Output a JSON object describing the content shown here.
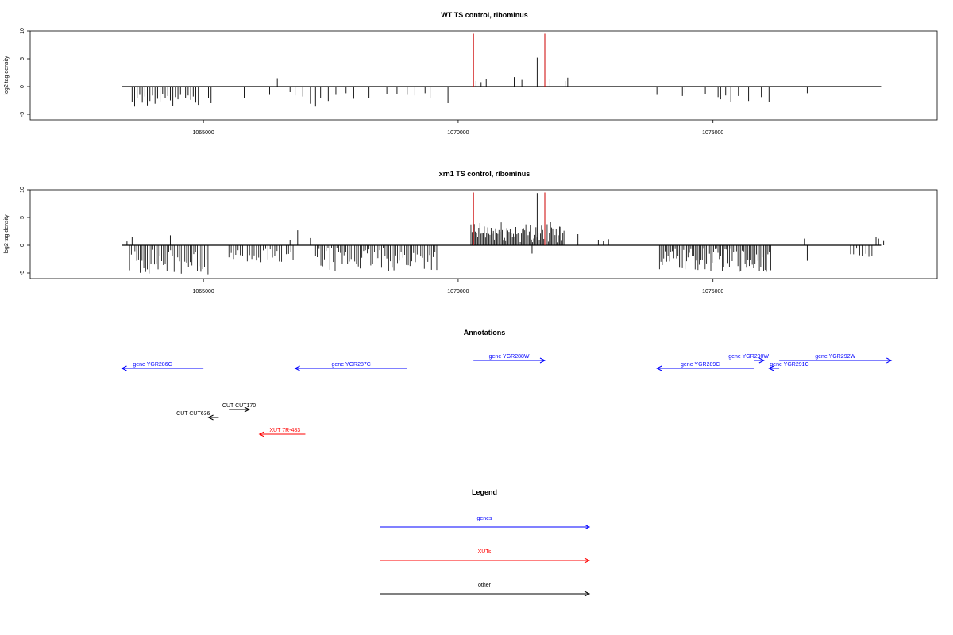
{
  "colors": {
    "gene": "#0000ff",
    "xut": "#ff0000",
    "other": "#000000",
    "marker": "#cc0000",
    "bar": "#000000"
  },
  "chart_data": [
    {
      "type": "bar",
      "title": "WT TS control, ribominus",
      "xlabel": "",
      "ylabel": "log2 tag density",
      "xlim": [
        1061600,
        1079400
      ],
      "ylim": [
        -6,
        10
      ],
      "x_ticks": [
        1065000,
        1070000,
        1075000
      ],
      "x_tick_labels": [
        "1065000",
        "1070000",
        "1075000"
      ],
      "y_ticks": [
        -5,
        0,
        5,
        10
      ],
      "y_tick_labels": [
        "-5",
        "0",
        "5",
        "10"
      ],
      "baseline_range": [
        1063400,
        1078300
      ],
      "markers": [
        1070300,
        1071700
      ],
      "dense_clusters": [],
      "sparse_bars": [
        [
          1063600,
          -2.8
        ],
        [
          1063650,
          -3.6
        ],
        [
          1063700,
          -2.1
        ],
        [
          1063750,
          -1.5
        ],
        [
          1063800,
          -2.9
        ],
        [
          1063850,
          -1.8
        ],
        [
          1063900,
          -3.4
        ],
        [
          1063950,
          -2.6
        ],
        [
          1064000,
          -1.6
        ],
        [
          1064050,
          -3.1
        ],
        [
          1064100,
          -2.2
        ],
        [
          1064150,
          -2.7
        ],
        [
          1064200,
          -1.4
        ],
        [
          1064250,
          -2.0
        ],
        [
          1064300,
          -1.7
        ],
        [
          1064350,
          -2.5
        ],
        [
          1064400,
          -3.5
        ],
        [
          1064450,
          -1.9
        ],
        [
          1064500,
          -2.3
        ],
        [
          1064550,
          -1.5
        ],
        [
          1064600,
          -2.8
        ],
        [
          1064650,
          -2.1
        ],
        [
          1064700,
          -1.6
        ],
        [
          1064750,
          -2.4
        ],
        [
          1064800,
          -1.8
        ],
        [
          1064850,
          -2.9
        ],
        [
          1064900,
          -3.3
        ],
        [
          1065100,
          -2.1
        ],
        [
          1065150,
          -3.0
        ],
        [
          1065800,
          -2.0
        ],
        [
          1066300,
          -1.5
        ],
        [
          1066450,
          1.5
        ],
        [
          1066700,
          -1.0
        ],
        [
          1066800,
          -1.6
        ],
        [
          1066950,
          -1.8
        ],
        [
          1067100,
          -3.1
        ],
        [
          1067200,
          -3.6
        ],
        [
          1067300,
          -2.1
        ],
        [
          1067450,
          -2.6
        ],
        [
          1067600,
          -1.5
        ],
        [
          1067800,
          -1.2
        ],
        [
          1067950,
          -2.2
        ],
        [
          1068250,
          -2.0
        ],
        [
          1068600,
          -1.4
        ],
        [
          1068700,
          -1.6
        ],
        [
          1068800,
          -1.3
        ],
        [
          1069000,
          -1.5
        ],
        [
          1069150,
          -1.6
        ],
        [
          1069350,
          -1.2
        ],
        [
          1069450,
          -2.1
        ],
        [
          1069800,
          -3.0
        ],
        [
          1070350,
          1.0
        ],
        [
          1070450,
          0.8
        ],
        [
          1070550,
          1.4
        ],
        [
          1071100,
          1.7
        ],
        [
          1071250,
          1.2
        ],
        [
          1071350,
          2.3
        ],
        [
          1071550,
          5.2
        ],
        [
          1071800,
          1.3
        ],
        [
          1072100,
          1.0
        ],
        [
          1072150,
          1.6
        ],
        [
          1073900,
          -1.5
        ],
        [
          1074400,
          -1.7
        ],
        [
          1074450,
          -1.2
        ],
        [
          1074850,
          -1.3
        ],
        [
          1075100,
          -1.9
        ],
        [
          1075150,
          -2.3
        ],
        [
          1075250,
          -1.6
        ],
        [
          1075350,
          -2.8
        ],
        [
          1075500,
          -1.7
        ],
        [
          1075700,
          -2.6
        ],
        [
          1075950,
          -1.9
        ],
        [
          1076100,
          -2.8
        ],
        [
          1076850,
          -1.2
        ]
      ]
    },
    {
      "type": "bar",
      "title": "xrn1 TS control, ribominus",
      "xlabel": "",
      "ylabel": "log2 tag density",
      "xlim": [
        1061600,
        1079400
      ],
      "ylim": [
        -6,
        10
      ],
      "x_ticks": [
        1065000,
        1070000,
        1075000
      ],
      "x_tick_labels": [
        "1065000",
        "1070000",
        "1075000"
      ],
      "y_ticks": [
        -5,
        0,
        5,
        10
      ],
      "y_tick_labels": [
        "-5",
        "0",
        "5",
        "10"
      ],
      "baseline_range": [
        1063400,
        1078300
      ],
      "markers": [
        1070300,
        1071700
      ],
      "dense_clusters": [
        {
          "start": 1063550,
          "end": 1065100,
          "step": 35,
          "min": -5.3,
          "max": -0.6
        },
        {
          "start": 1065500,
          "end": 1066800,
          "step": 45,
          "min": -3.3,
          "max": -0.5
        },
        {
          "start": 1067200,
          "end": 1069600,
          "step": 35,
          "min": -4.6,
          "max": -0.5
        },
        {
          "start": 1070250,
          "end": 1072100,
          "step": 22,
          "min": 0.5,
          "max": 4.2
        },
        {
          "start": 1073950,
          "end": 1076150,
          "step": 28,
          "min": -4.8,
          "max": -0.5
        },
        {
          "start": 1077700,
          "end": 1078150,
          "step": 60,
          "min": -2.2,
          "max": -0.5
        }
      ],
      "sparse_bars": [
        [
          1063500,
          0.7
        ],
        [
          1063600,
          1.5
        ],
        [
          1064350,
          1.8
        ],
        [
          1066700,
          1.0
        ],
        [
          1066850,
          2.7
        ],
        [
          1067100,
          1.3
        ],
        [
          1071550,
          9.4
        ],
        [
          1071450,
          -1.5
        ],
        [
          1072350,
          2.0
        ],
        [
          1072750,
          1.0
        ],
        [
          1072850,
          0.8
        ],
        [
          1072950,
          1.1
        ],
        [
          1076800,
          1.2
        ],
        [
          1076850,
          -2.8
        ],
        [
          1078200,
          1.5
        ],
        [
          1078250,
          1.2
        ],
        [
          1078350,
          0.9
        ]
      ]
    }
  ],
  "annotations": {
    "title": "Annotations",
    "items": [
      {
        "label": "gene YGR286C",
        "kind": "gene",
        "direction": "left",
        "start": 1063400,
        "end": 1065000,
        "row": 2,
        "label_pos": 1064000
      },
      {
        "label": "gene YGR287C",
        "kind": "gene",
        "direction": "left",
        "start": 1066800,
        "end": 1069000,
        "row": 2,
        "label_pos": 1067900
      },
      {
        "label": "gene YGR288W",
        "kind": "gene",
        "direction": "right",
        "start": 1070300,
        "end": 1071700,
        "row": 1,
        "label_pos": 1071000
      },
      {
        "label": "gene YGR289C",
        "kind": "gene",
        "direction": "left",
        "start": 1073900,
        "end": 1075800,
        "row": 2,
        "label_pos": 1074750
      },
      {
        "label": "gene YGR290W",
        "kind": "gene",
        "direction": "right",
        "start": 1075800,
        "end": 1076000,
        "row": 1,
        "label_pos": 1075700
      },
      {
        "label": "gene YGR291C",
        "kind": "gene",
        "direction": "left",
        "start": 1076100,
        "end": 1076300,
        "row": 2,
        "label_pos": 1076500
      },
      {
        "label": "gene YGR292W",
        "kind": "gene",
        "direction": "right",
        "start": 1076300,
        "end": 1078500,
        "row": 1,
        "label_pos": 1077400
      },
      {
        "label": "CUT CUT170",
        "kind": "other",
        "direction": "right",
        "start": 1065500,
        "end": 1065900,
        "row": 4,
        "label_pos": 1065700
      },
      {
        "label": "CUT CUT636",
        "kind": "other",
        "direction": "left",
        "start": 1065100,
        "end": 1065300,
        "row": 5,
        "label_pos": 1064800
      },
      {
        "label": "XUT 7R-483",
        "kind": "xut",
        "direction": "left",
        "start": 1066100,
        "end": 1067000,
        "row": 6,
        "label_pos": 1066600
      }
    ]
  },
  "legend": {
    "title": "Legend",
    "items": [
      {
        "label": "genes",
        "kind": "gene"
      },
      {
        "label": "XUTs",
        "kind": "xut"
      },
      {
        "label": "other",
        "kind": "other"
      }
    ]
  }
}
